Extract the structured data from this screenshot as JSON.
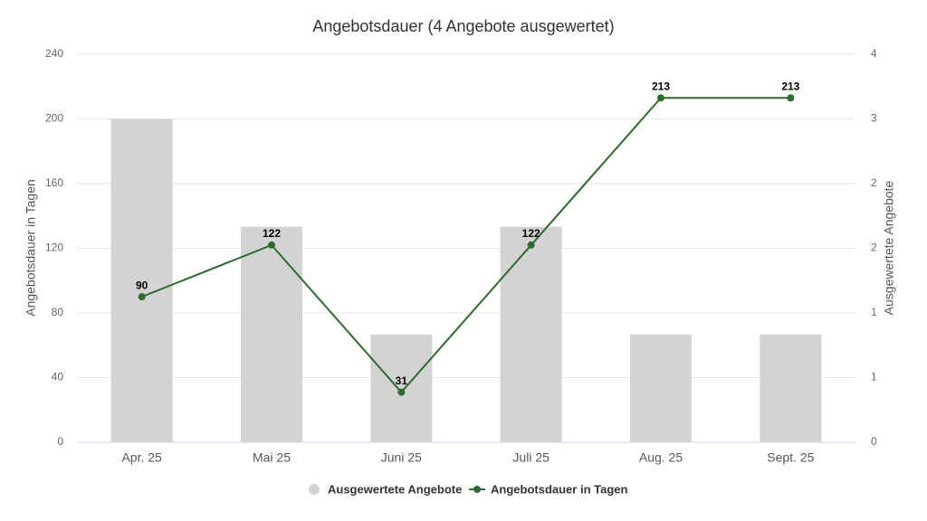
{
  "chart_data": {
    "type": "bar_line",
    "title": "Angebotsdauer (4 Angebote ausgewertet)",
    "y_label": "Angebotsdauer in Tagen",
    "y2_label": "Ausgewertete Angebote",
    "categories": [
      "Apr. 25",
      "Mai 25",
      "Juni 25",
      "Juli 25",
      "Aug. 25",
      "Sept. 25"
    ],
    "series": [
      {
        "name": "Ausgewertete Angebote",
        "type": "bar",
        "axis": "y2",
        "color": "#d3d3d3",
        "values": [
          3,
          2,
          1,
          2,
          1,
          1
        ]
      },
      {
        "name": "Angebotsdauer in Tagen",
        "type": "line",
        "color": "#2e6b2e",
        "values": [
          90,
          122,
          31,
          122,
          213,
          213
        ]
      }
    ],
    "ylim": [
      0,
      240
    ],
    "yticks": [
      0,
      40,
      80,
      120,
      160,
      200,
      240
    ],
    "y2lim": [
      0,
      3.6
    ],
    "y2ticks": [
      0,
      {
        "value": 0.6,
        "label": "1"
      },
      {
        "value": 1.2,
        "label": "1"
      },
      {
        "value": 1.8,
        "label": "2"
      },
      {
        "value": 2.4,
        "label": "2"
      },
      3,
      {
        "value": 3.6,
        "label": "4"
      }
    ],
    "grid": true
  }
}
